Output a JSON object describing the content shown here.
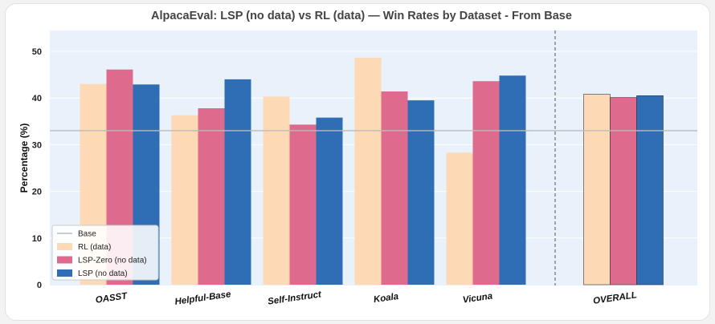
{
  "chart_data": {
    "type": "bar",
    "title": "AlpacaEval: LSP (no data) vs RL (data) — Win Rates by Dataset - From Base",
    "xlabel": "",
    "ylabel": "Percentage (%)",
    "ylim": [
      0,
      55
    ],
    "yticks": [
      0,
      10,
      20,
      30,
      40,
      50
    ],
    "categories": [
      "OASST",
      "Helpful-Base",
      "Self-Instruct",
      "Koala",
      "Vicuna",
      "OVERALL"
    ],
    "series": [
      {
        "name": "RL (data)",
        "color": "#fdd9b5",
        "values": [
          43.0,
          36.3,
          40.3,
          48.6,
          28.3,
          40.8
        ]
      },
      {
        "name": "LSP-Zero (no data)",
        "color": "#de6b8e",
        "values": [
          46.1,
          37.8,
          34.3,
          41.4,
          43.6,
          40.1
        ]
      },
      {
        "name": "LSP (no data)",
        "color": "#2f6eb5",
        "values": [
          42.9,
          44.0,
          35.8,
          39.5,
          44.8,
          40.5
        ]
      }
    ],
    "baseline": {
      "name": "Base",
      "value": 33.0,
      "color": "#bbbbbb"
    },
    "separator_before": "OVERALL",
    "grid": true,
    "legend": {
      "position": "lower-left",
      "entries": [
        "Base",
        "RL (data)",
        "LSP-Zero (no data)",
        "LSP (no data)"
      ]
    }
  }
}
